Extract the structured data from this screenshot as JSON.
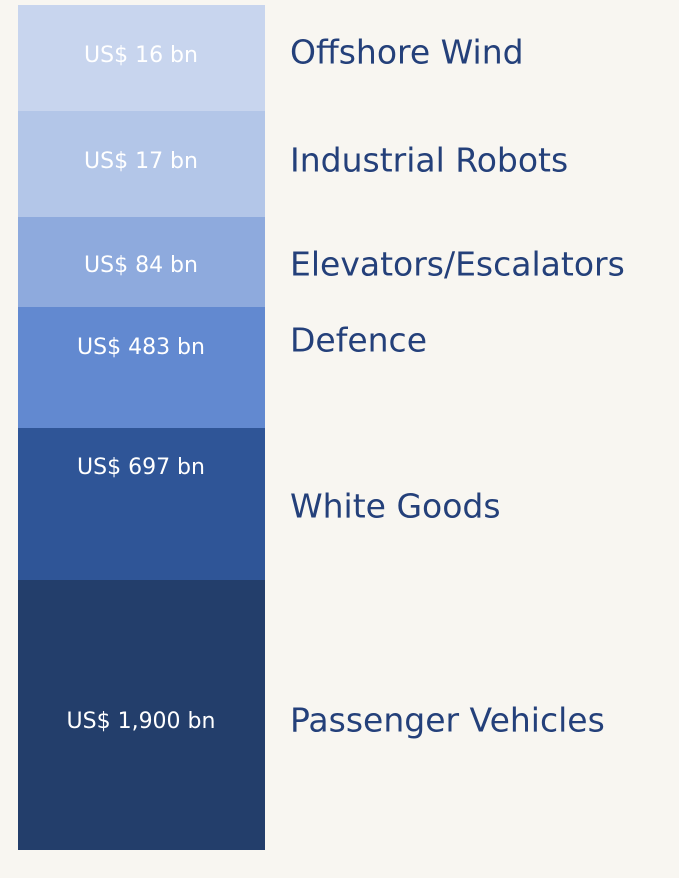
{
  "items": [
    {
      "value": "US$ 16 bn",
      "name": "Offshore Wind"
    },
    {
      "value": "US$ 17 bn",
      "name": "Industrial Robots"
    },
    {
      "value": "US$ 84 bn",
      "name": "Elevators/Escalators"
    },
    {
      "value": "US$ 483 bn",
      "name": "Defence"
    },
    {
      "value": "US$ 697 bn",
      "name": "White Goods"
    },
    {
      "value": "US$ 1,900 bn",
      "name": "Passenger Vehicles"
    }
  ]
}
